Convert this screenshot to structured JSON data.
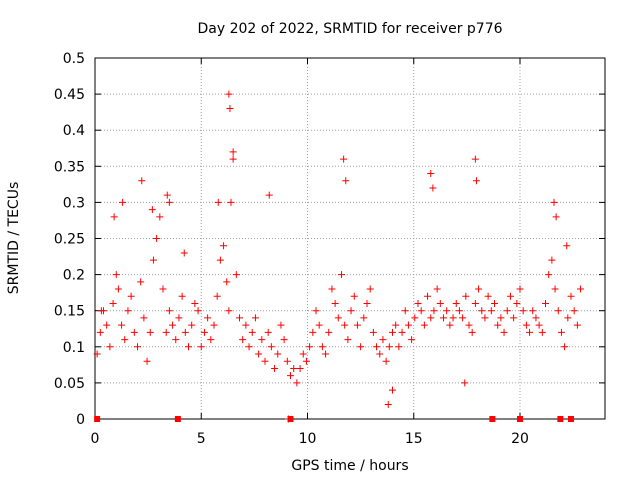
{
  "chart_data": {
    "type": "scatter",
    "title": "Day 202 of 2022, SRMTID for receiver p776",
    "xlabel": "GPS time / hours",
    "ylabel": "SRMTID / TECUs",
    "xlim": [
      0,
      24
    ],
    "ylim": [
      0,
      0.5
    ],
    "x_ticks": [
      0,
      5,
      10,
      15,
      20
    ],
    "x_tick_labels": [
      "0",
      "5",
      "10",
      "15",
      "20"
    ],
    "y_ticks": [
      0,
      0.05,
      0.1,
      0.15,
      0.2,
      0.25,
      0.3,
      0.35,
      0.4,
      0.45,
      0.5
    ],
    "y_tick_labels": [
      "0",
      "0.05",
      "0.1",
      "0.15",
      "0.2",
      "0.25",
      "0.3",
      "0.35",
      "0.4",
      "0.45",
      "0.5"
    ],
    "grid": true,
    "marker": "plus",
    "color": "#ff0000",
    "series": [
      {
        "name": "SRMTID",
        "x": [
          0.1,
          0.25,
          0.4,
          0.55,
          0.7,
          0.85,
          1.0,
          1.1,
          1.25,
          1.4,
          1.55,
          1.7,
          1.85,
          2.0,
          2.15,
          2.3,
          2.45,
          2.6,
          2.75,
          2.9,
          3.05,
          3.2,
          3.35,
          3.5,
          3.65,
          3.8,
          3.95,
          4.1,
          4.25,
          4.4,
          4.55,
          4.7,
          4.85,
          5.0,
          5.15,
          5.3,
          5.45,
          5.6,
          5.75,
          5.9,
          6.05,
          6.2,
          6.3,
          6.4,
          6.5,
          6.65,
          6.8,
          6.95,
          7.1,
          7.25,
          7.4,
          7.55,
          7.7,
          7.85,
          8.0,
          8.15,
          8.3,
          8.45,
          8.6,
          8.75,
          8.9,
          9.05,
          9.2,
          9.35,
          9.5,
          9.65,
          9.8,
          9.95,
          10.1,
          10.25,
          10.4,
          10.55,
          10.7,
          10.85,
          11.0,
          11.15,
          11.3,
          11.45,
          11.6,
          11.75,
          11.9,
          12.05,
          12.2,
          12.35,
          12.5,
          12.65,
          12.8,
          12.95,
          13.1,
          13.25,
          13.4,
          13.55,
          13.7,
          13.85,
          14.0,
          14.15,
          14.3,
          14.45,
          14.6,
          14.75,
          14.9,
          15.05,
          15.2,
          15.35,
          15.5,
          15.65,
          15.8,
          15.95,
          16.1,
          16.25,
          16.4,
          16.55,
          16.7,
          16.85,
          17.0,
          17.15,
          17.3,
          17.45,
          17.6,
          17.75,
          17.9,
          18.05,
          18.2,
          18.35,
          18.5,
          18.65,
          18.8,
          18.95,
          19.1,
          19.25,
          19.4,
          19.55,
          19.7,
          19.85,
          20.0,
          20.15,
          20.3,
          20.45,
          20.6,
          20.75,
          20.9,
          21.05,
          21.2,
          21.35,
          21.5,
          21.65,
          21.8,
          21.95,
          22.1,
          22.25,
          22.4,
          22.55,
          22.7,
          22.85,
          0.3,
          0.9,
          1.3,
          2.2,
          2.7,
          3.4,
          3.5,
          4.2,
          5.8,
          6.3,
          6.35,
          6.5,
          8.2,
          11.7,
          11.8,
          15.8,
          15.9,
          17.9,
          17.95,
          21.6,
          21.7,
          22.2,
          13.8,
          14.0,
          17.4,
          9.1
        ],
        "y": [
          0.09,
          0.12,
          0.15,
          0.13,
          0.1,
          0.16,
          0.2,
          0.18,
          0.13,
          0.11,
          0.15,
          0.17,
          0.12,
          0.1,
          0.19,
          0.14,
          0.08,
          0.12,
          0.22,
          0.25,
          0.28,
          0.18,
          0.12,
          0.15,
          0.13,
          0.11,
          0.14,
          0.17,
          0.12,
          0.1,
          0.13,
          0.16,
          0.15,
          0.1,
          0.12,
          0.14,
          0.11,
          0.13,
          0.17,
          0.22,
          0.24,
          0.19,
          0.15,
          0.3,
          0.36,
          0.2,
          0.14,
          0.11,
          0.13,
          0.1,
          0.12,
          0.14,
          0.09,
          0.11,
          0.08,
          0.12,
          0.1,
          0.07,
          0.09,
          0.13,
          0.11,
          0.08,
          0.06,
          0.07,
          0.05,
          0.07,
          0.09,
          0.08,
          0.1,
          0.12,
          0.15,
          0.13,
          0.1,
          0.09,
          0.12,
          0.18,
          0.16,
          0.14,
          0.2,
          0.13,
          0.11,
          0.15,
          0.17,
          0.13,
          0.1,
          0.14,
          0.16,
          0.18,
          0.12,
          0.1,
          0.09,
          0.11,
          0.08,
          0.1,
          0.12,
          0.13,
          0.1,
          0.12,
          0.15,
          0.13,
          0.11,
          0.14,
          0.16,
          0.15,
          0.13,
          0.17,
          0.14,
          0.15,
          0.18,
          0.16,
          0.14,
          0.15,
          0.13,
          0.14,
          0.16,
          0.15,
          0.14,
          0.17,
          0.13,
          0.12,
          0.16,
          0.18,
          0.15,
          0.14,
          0.17,
          0.15,
          0.16,
          0.13,
          0.14,
          0.12,
          0.15,
          0.17,
          0.14,
          0.16,
          0.18,
          0.15,
          0.13,
          0.12,
          0.15,
          0.14,
          0.13,
          0.12,
          0.16,
          0.2,
          0.22,
          0.18,
          0.15,
          0.12,
          0.1,
          0.14,
          0.17,
          0.15,
          0.13,
          0.18,
          0.15,
          0.28,
          0.3,
          0.33,
          0.29,
          0.31,
          0.3,
          0.23,
          0.3,
          0.45,
          0.43,
          0.37,
          0.31,
          0.36,
          0.33,
          0.34,
          0.32,
          0.36,
          0.33,
          0.3,
          0.28,
          0.24,
          0.02,
          0.04,
          0.05,
          0.0
        ]
      }
    ],
    "zero_markers_x": [
      0.1,
      3.9,
      9.2,
      18.7,
      20.0,
      21.9,
      22.4
    ]
  }
}
